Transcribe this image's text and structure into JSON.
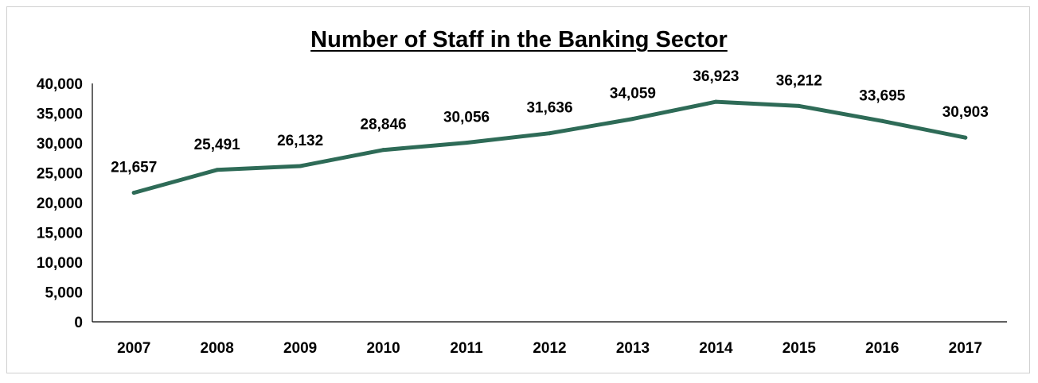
{
  "chart_data": {
    "type": "line",
    "title": "Number of Staff in the Banking Sector",
    "xlabel": "",
    "ylabel": "",
    "categories": [
      "2007",
      "2008",
      "2009",
      "2010",
      "2011",
      "2012",
      "2013",
      "2014",
      "2015",
      "2016",
      "2017"
    ],
    "series": [
      {
        "values": [
          21657,
          25491,
          26132,
          28846,
          30056,
          31636,
          34059,
          36923,
          36212,
          33695,
          30903
        ],
        "labels": [
          "21,657",
          "25,491",
          "26,132",
          "28,846",
          "30,056",
          "31,636",
          "34,059",
          "36,923",
          "36,212",
          "33,695",
          "30,903"
        ],
        "color": "#2e6b57"
      }
    ],
    "ylim": [
      0,
      40000
    ],
    "yticks": [
      0,
      5000,
      10000,
      15000,
      20000,
      25000,
      30000,
      35000,
      40000
    ],
    "ytick_labels": [
      "0",
      "5,000",
      "10,000",
      "15,000",
      "20,000",
      "25,000",
      "30,000",
      "35,000",
      "40,000"
    ],
    "grid": false,
    "legend": "none"
  }
}
